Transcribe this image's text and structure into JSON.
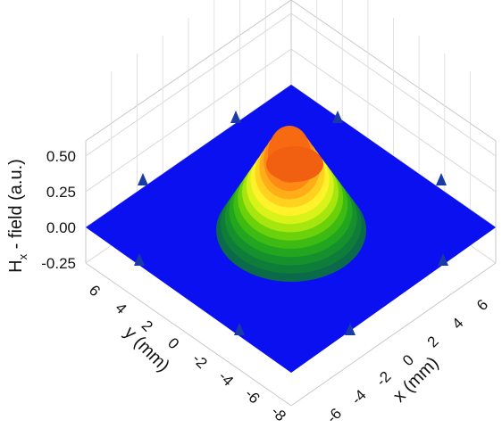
{
  "chart_data": {
    "type": "surface3d",
    "z_axis": {
      "label_main": "H",
      "label_sub": "x",
      "label_rest": " - field (a.u.)",
      "ticks": [
        {
          "value": 0.5,
          "label": "0.50"
        },
        {
          "value": 0.25,
          "label": "0.25"
        },
        {
          "value": 0.0,
          "label": "0.00"
        },
        {
          "value": -0.25,
          "label": "-0.25"
        }
      ],
      "range": [
        -0.25,
        0.55
      ]
    },
    "y_axis": {
      "label": "y (mm)",
      "ticks": [
        {
          "value": 6,
          "label": "6"
        },
        {
          "value": 4,
          "label": "4"
        },
        {
          "value": 2,
          "label": "2"
        },
        {
          "value": 0,
          "label": "0"
        },
        {
          "value": -2,
          "label": "-2"
        },
        {
          "value": -4,
          "label": "-4"
        },
        {
          "value": -6,
          "label": "-6"
        },
        {
          "value": -8,
          "label": "-8"
        }
      ],
      "range": [
        -8,
        8
      ]
    },
    "x_axis": {
      "label": "x (mm)",
      "ticks": [
        {
          "value": -6,
          "label": "-6"
        },
        {
          "value": -4,
          "label": "-4"
        },
        {
          "value": -2,
          "label": "-2"
        },
        {
          "value": 0,
          "label": "0"
        },
        {
          "value": 2,
          "label": "2"
        },
        {
          "value": 4,
          "label": "4"
        },
        {
          "value": 6,
          "label": "6"
        }
      ],
      "range": [
        -8,
        8
      ]
    },
    "surface": {
      "baseline_value": 0.0,
      "baseline_color": "#0a10f0",
      "peak": {
        "x": 0,
        "y": 0.5,
        "z": 0.52
      },
      "contour_levels": [
        0.0,
        0.04,
        0.08,
        0.12,
        0.16,
        0.2,
        0.24,
        0.28,
        0.32,
        0.36,
        0.4,
        0.44,
        0.48
      ],
      "contour_colors": [
        "#0a6a4a",
        "#0f7d3a",
        "#16902c",
        "#22a61f",
        "#3dbb12",
        "#6ad10a",
        "#a6e60e",
        "#d9f21a",
        "#fff22a",
        "#ffd21f",
        "#ffae1a",
        "#ff8a15",
        "#f76a12"
      ]
    },
    "box_color": "#c8c8c8",
    "grid": true
  }
}
